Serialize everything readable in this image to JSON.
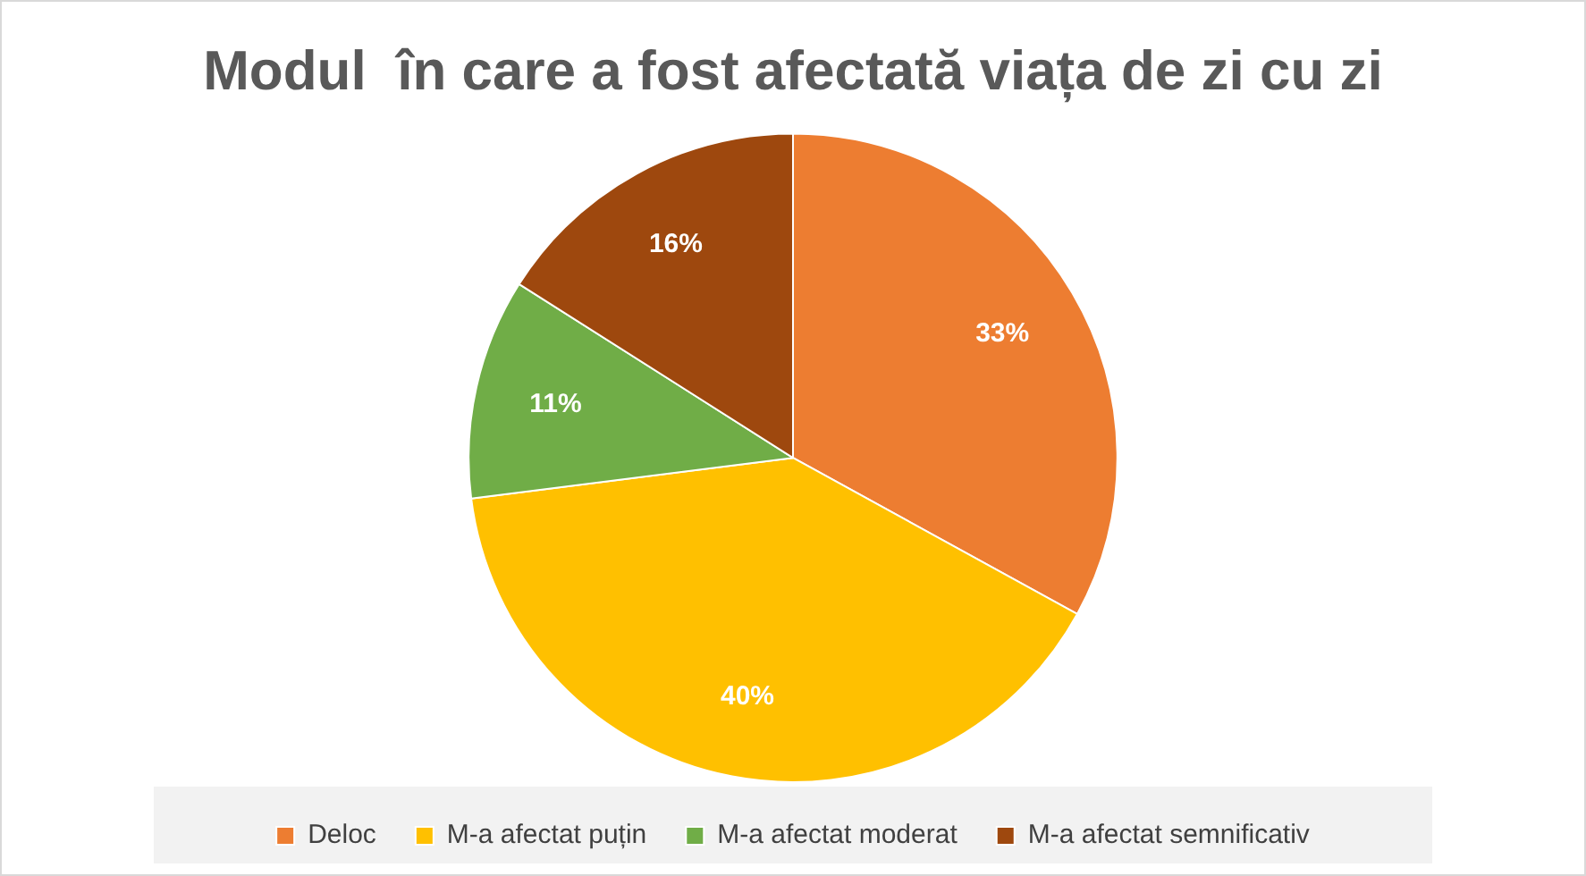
{
  "chart_data": {
    "type": "pie",
    "title": "Modul  în care a fost afectată viața de zi cu zi",
    "categories": [
      "Deloc",
      "M-a afectat puțin",
      "M-a afectat moderat",
      "M-a afectat semnificativ"
    ],
    "values": [
      33,
      40,
      11,
      16
    ],
    "colors": [
      "#ed7d31",
      "#ffc000",
      "#70ad47",
      "#9e480e"
    ],
    "value_labels": [
      "33%",
      "40%",
      "11%",
      "16%"
    ],
    "legend": "bottom"
  }
}
